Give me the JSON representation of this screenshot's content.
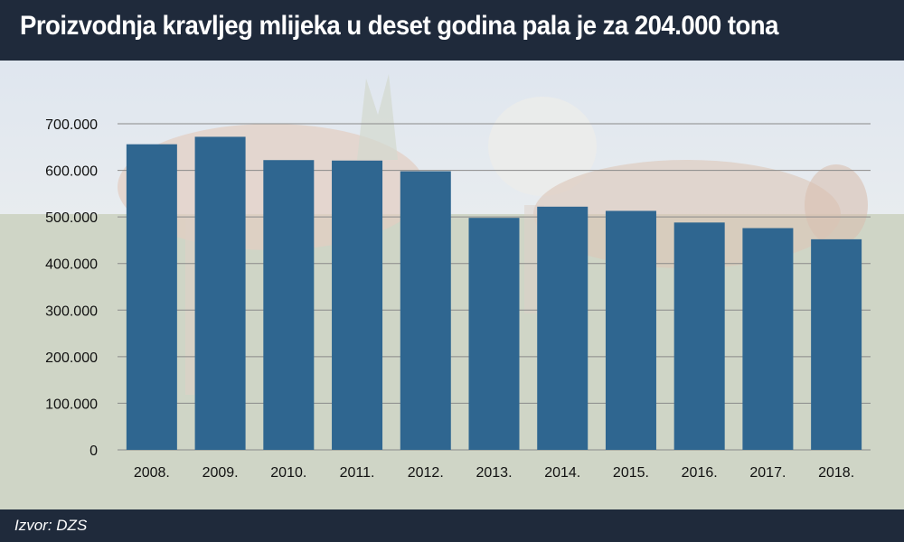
{
  "header": {
    "title": "Proizvodnja kravljeg mlijeka u deset godina pala je za 204.000 tona"
  },
  "footer": {
    "source": "Izvor: DZS"
  },
  "colors": {
    "header_bg": "#1f2a3b",
    "bar": "#2f6690",
    "gridline": "#8a8a8a"
  },
  "chart_data": {
    "type": "bar",
    "title": "Proizvodnja kravljeg mlijeka u deset godina pala je za 204.000 tona",
    "xlabel": "",
    "ylabel": "",
    "categories": [
      "2008.",
      "2009.",
      "2010.",
      "2011.",
      "2012.",
      "2013.",
      "2014.",
      "2015.",
      "2016.",
      "2017.",
      "2018."
    ],
    "values": [
      656000,
      672000,
      622000,
      621000,
      598000,
      498000,
      522000,
      513000,
      488000,
      476000,
      452000
    ],
    "ylim": [
      0,
      700000
    ],
    "yticks": [
      0,
      100000,
      200000,
      300000,
      400000,
      500000,
      600000,
      700000
    ],
    "ytick_labels": [
      "0",
      "100.000",
      "200.000",
      "300.000",
      "400.000",
      "500.000",
      "600.000",
      "700.000"
    ],
    "grid": true,
    "legend": "none"
  }
}
